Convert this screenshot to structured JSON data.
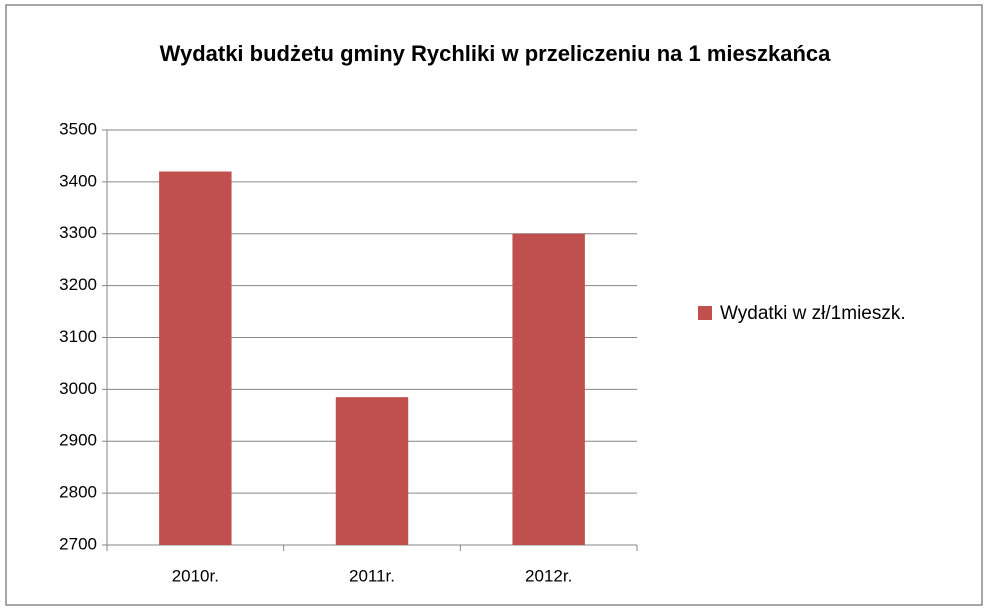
{
  "chart_data": {
    "type": "bar",
    "title": "Wydatki budżetu gminy Rychliki w przeliczeniu na 1 mieszkańca",
    "categories": [
      "2010r.",
      "2011r.",
      "2012r."
    ],
    "series": [
      {
        "name": "Wydatki w zł/1mieszk.",
        "color": "#c0504d",
        "values": [
          3420,
          2985,
          3300
        ]
      }
    ],
    "ylim": [
      2700,
      3500
    ],
    "yticks": [
      2700,
      2800,
      2900,
      3000,
      3100,
      3200,
      3300,
      3400,
      3500
    ],
    "grid": true,
    "legend": "right"
  }
}
